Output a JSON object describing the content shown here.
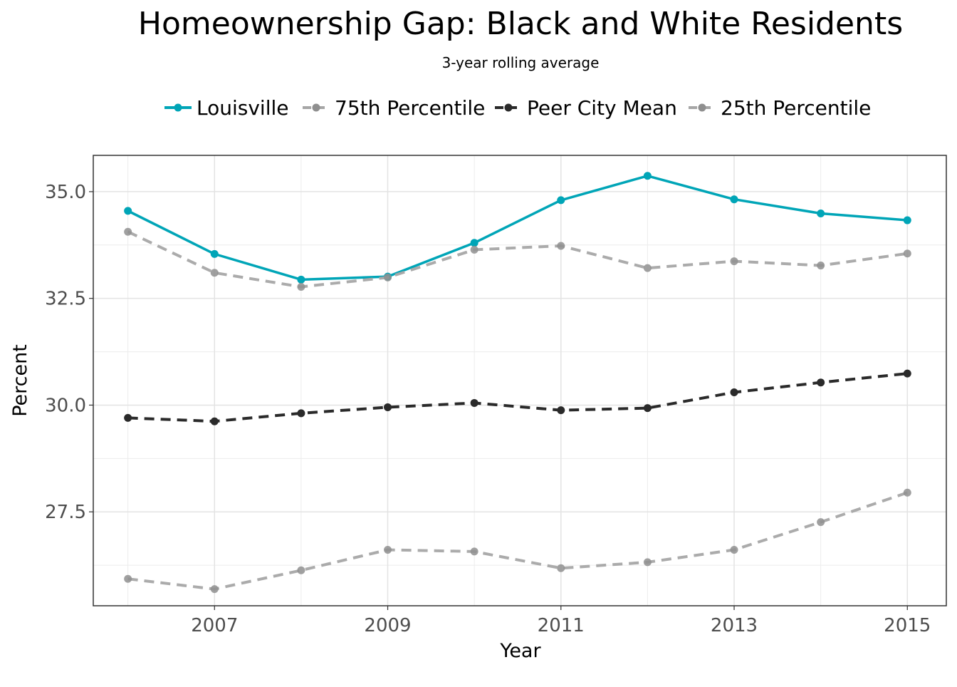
{
  "chart_data": {
    "type": "line",
    "title": "Homeownership Gap: Black and White Residents",
    "subtitle": "3-year rolling average",
    "xlabel": "Year",
    "ylabel": "Percent",
    "x": [
      2006,
      2007,
      2008,
      2009,
      2010,
      2011,
      2012,
      2013,
      2014,
      2015
    ],
    "x_ticks": [
      "2007",
      "2009",
      "2011",
      "2013",
      "2015"
    ],
    "y_ticks": [
      "27.5",
      "30.0",
      "32.5",
      "35.0"
    ],
    "xlim": [
      2005.6,
      2015.45
    ],
    "ylim": [
      25.3,
      35.85
    ],
    "grid": true,
    "legend_position": "top",
    "series": [
      {
        "name": "Louisville",
        "color": "#00a5b7",
        "style": "solid",
        "values": [
          34.55,
          33.54,
          32.94,
          33.01,
          33.8,
          34.8,
          35.37,
          34.82,
          34.49,
          34.33
        ]
      },
      {
        "name": "75th Percentile",
        "color": "#a6a6a6",
        "style": "dashed",
        "values": [
          34.06,
          33.1,
          32.77,
          32.99,
          33.64,
          33.73,
          33.21,
          33.37,
          33.27,
          33.55
        ]
      },
      {
        "name": "Peer City Mean",
        "color": "#2a2a2a",
        "style": "dashed",
        "values": [
          29.7,
          29.62,
          29.81,
          29.95,
          30.05,
          29.88,
          29.93,
          30.3,
          30.53,
          30.74
        ]
      },
      {
        "name": "25th Percentile",
        "color": "#a6a6a6",
        "style": "dashed",
        "values": [
          25.93,
          25.69,
          26.13,
          26.61,
          26.57,
          26.18,
          26.32,
          26.61,
          27.26,
          27.95
        ]
      }
    ]
  }
}
